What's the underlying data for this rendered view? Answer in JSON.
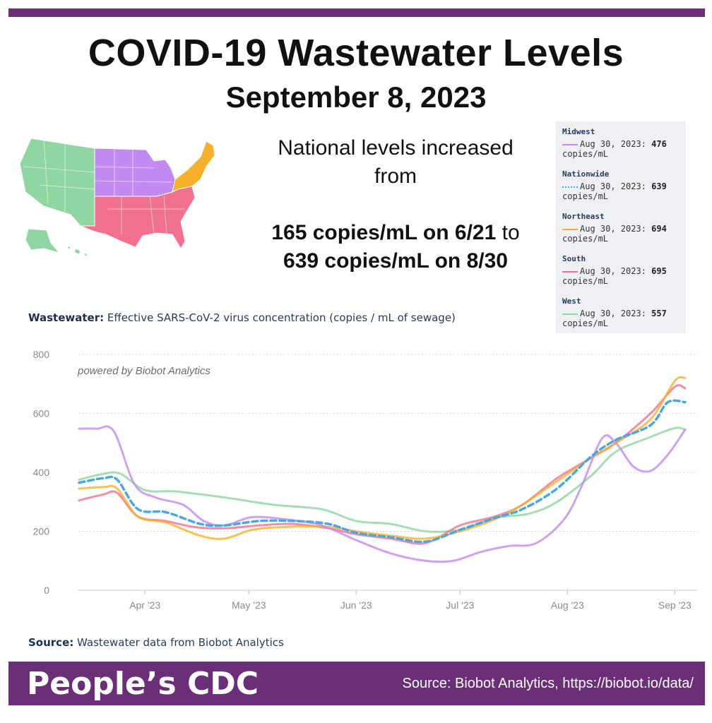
{
  "header": {
    "title": "COVID-19 Wastewater Levels",
    "subtitle": "September 8, 2023"
  },
  "summary": {
    "line1": "National levels increased",
    "line2": "from",
    "line3a": "165 copies/mL on 6/21",
    "line3b": " to",
    "line4": "639 copies/mL on 8/30"
  },
  "map": {
    "regions": [
      {
        "name": "West",
        "color": "#8fd6a0"
      },
      {
        "name": "Midwest",
        "color": "#c289f0"
      },
      {
        "name": "Northeast",
        "color": "#f6b02a"
      },
      {
        "name": "South",
        "color": "#f0708e"
      }
    ]
  },
  "tooltip": {
    "items": [
      {
        "region": "Midwest",
        "date": "Aug 30, 2023:",
        "value": "476",
        "unit": "copies/mL",
        "color": "#c289f0",
        "dash": false
      },
      {
        "region": "Nationwide",
        "date": "Aug 30, 2023:",
        "value": "639",
        "unit": "copies/mL",
        "color": "#4aa8e0",
        "dash": true
      },
      {
        "region": "Northeast",
        "date": "Aug 30, 2023:",
        "value": "694",
        "unit": "copies/mL",
        "color": "#f6b02a",
        "dash": false
      },
      {
        "region": "South",
        "date": "Aug 30, 2023:",
        "value": "695",
        "unit": "copies/mL",
        "color": "#f0708e",
        "dash": false
      },
      {
        "region": "West",
        "date": "Aug 30, 2023:",
        "value": "557",
        "unit": "copies/mL",
        "color": "#8fd6a0",
        "dash": false
      }
    ]
  },
  "wastewater_label": {
    "bold": "Wastewater:",
    "text": " Effective SARS-CoV-2 virus concentration (copies / mL of sewage)"
  },
  "source_note": {
    "bold": "Source:",
    "text": " Wastewater data from Biobot Analytics"
  },
  "footer": {
    "brand": "People’s CDC",
    "source": "Source: Biobot Analytics, https://biobot.io/data/"
  },
  "colors": {
    "accent": "#6b2f77"
  },
  "chart_data": {
    "type": "line",
    "title": "",
    "watermark": "powered by Biobot Analytics",
    "xlabel": "",
    "ylabel": "copies / mL of sewage",
    "ylim": [
      0,
      800
    ],
    "xlim": [
      0,
      175
    ],
    "yticks": [
      0,
      200,
      400,
      600,
      800
    ],
    "ytick_labels": [
      "0",
      "200",
      "400",
      "600",
      "800"
    ],
    "xticks": [
      {
        "x": 19,
        "label": "Apr '23"
      },
      {
        "x": 49,
        "label": "May '23"
      },
      {
        "x": 80,
        "label": "Jun '23"
      },
      {
        "x": 110,
        "label": "Jul '23"
      },
      {
        "x": 141,
        "label": "Aug '23"
      },
      {
        "x": 172,
        "label": "Sep '23"
      }
    ],
    "series": [
      {
        "name": "West",
        "color": "#8fd6a0",
        "dash": false,
        "points": [
          [
            0,
            375
          ],
          [
            7,
            395
          ],
          [
            12,
            395
          ],
          [
            19,
            340
          ],
          [
            28,
            335
          ],
          [
            42,
            315
          ],
          [
            56,
            290
          ],
          [
            70,
            275
          ],
          [
            80,
            235
          ],
          [
            90,
            225
          ],
          [
            100,
            200
          ],
          [
            110,
            205
          ],
          [
            120,
            245
          ],
          [
            130,
            260
          ],
          [
            138,
            300
          ],
          [
            148,
            390
          ],
          [
            155,
            470
          ],
          [
            165,
            520
          ],
          [
            172,
            550
          ],
          [
            175,
            545
          ]
        ]
      },
      {
        "name": "South",
        "color": "#f0708e",
        "dash": false,
        "points": [
          [
            0,
            305
          ],
          [
            7,
            325
          ],
          [
            11,
            330
          ],
          [
            17,
            250
          ],
          [
            25,
            235
          ],
          [
            33,
            215
          ],
          [
            42,
            210
          ],
          [
            52,
            220
          ],
          [
            62,
            225
          ],
          [
            72,
            210
          ],
          [
            80,
            190
          ],
          [
            90,
            175
          ],
          [
            100,
            160
          ],
          [
            110,
            220
          ],
          [
            120,
            250
          ],
          [
            128,
            290
          ],
          [
            138,
            380
          ],
          [
            148,
            450
          ],
          [
            155,
            500
          ],
          [
            165,
            600
          ],
          [
            172,
            690
          ],
          [
            175,
            685
          ]
        ]
      },
      {
        "name": "Northeast",
        "color": "#f6b02a",
        "dash": false,
        "points": [
          [
            0,
            345
          ],
          [
            7,
            350
          ],
          [
            11,
            345
          ],
          [
            17,
            250
          ],
          [
            25,
            230
          ],
          [
            35,
            185
          ],
          [
            42,
            175
          ],
          [
            50,
            205
          ],
          [
            60,
            215
          ],
          [
            72,
            215
          ],
          [
            80,
            200
          ],
          [
            90,
            185
          ],
          [
            100,
            175
          ],
          [
            110,
            200
          ],
          [
            120,
            240
          ],
          [
            128,
            290
          ],
          [
            138,
            370
          ],
          [
            148,
            450
          ],
          [
            155,
            500
          ],
          [
            165,
            580
          ],
          [
            172,
            710
          ],
          [
            175,
            720
          ]
        ]
      },
      {
        "name": "Midwest",
        "color": "#c289f0",
        "dash": false,
        "points": [
          [
            0,
            548
          ],
          [
            5,
            548
          ],
          [
            10,
            540
          ],
          [
            16,
            360
          ],
          [
            22,
            315
          ],
          [
            30,
            290
          ],
          [
            36,
            235
          ],
          [
            42,
            220
          ],
          [
            50,
            248
          ],
          [
            60,
            240
          ],
          [
            70,
            220
          ],
          [
            80,
            170
          ],
          [
            90,
            125
          ],
          [
            100,
            100
          ],
          [
            108,
            100
          ],
          [
            116,
            130
          ],
          [
            124,
            150
          ],
          [
            132,
            160
          ],
          [
            140,
            240
          ],
          [
            145,
            350
          ],
          [
            151,
            515
          ],
          [
            155,
            500
          ],
          [
            160,
            420
          ],
          [
            165,
            405
          ],
          [
            170,
            460
          ],
          [
            175,
            545
          ]
        ]
      },
      {
        "name": "Nationwide",
        "color": "#4aa8e0",
        "dash": true,
        "points": [
          [
            0,
            365
          ],
          [
            7,
            380
          ],
          [
            11,
            375
          ],
          [
            17,
            275
          ],
          [
            25,
            265
          ],
          [
            35,
            225
          ],
          [
            42,
            220
          ],
          [
            52,
            235
          ],
          [
            62,
            235
          ],
          [
            72,
            225
          ],
          [
            80,
            195
          ],
          [
            90,
            180
          ],
          [
            100,
            165
          ],
          [
            110,
            205
          ],
          [
            120,
            245
          ],
          [
            128,
            275
          ],
          [
            138,
            345
          ],
          [
            148,
            455
          ],
          [
            155,
            510
          ],
          [
            165,
            560
          ],
          [
            170,
            638
          ],
          [
            175,
            638
          ]
        ]
      }
    ]
  }
}
